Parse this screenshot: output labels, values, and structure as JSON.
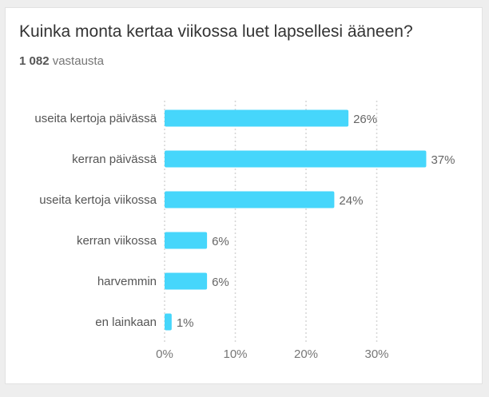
{
  "title": "Kuinka monta kertaa viikossa luet lapsellesi ääneen?",
  "responses": {
    "count": "1 082",
    "label": "vastausta"
  },
  "chart_data": {
    "type": "bar",
    "orientation": "horizontal",
    "categories": [
      "useita kertoja päivässä",
      "kerran päivässä",
      "useita kertoja viikossa",
      "kerran viikossa",
      "harvemmin",
      "en lainkaan"
    ],
    "values": [
      26,
      37,
      24,
      6,
      6,
      1
    ],
    "value_labels": [
      "26%",
      "37%",
      "24%",
      "6%",
      "6%",
      "1%"
    ],
    "xlim": [
      0,
      40
    ],
    "xticks": [
      0,
      10,
      20,
      30
    ],
    "xtick_labels": [
      "0%",
      "10%",
      "20%",
      "30%"
    ],
    "grid": true,
    "legend": "none",
    "bar_color": "#46d6fb",
    "grid_color": "#d6d6d6"
  }
}
